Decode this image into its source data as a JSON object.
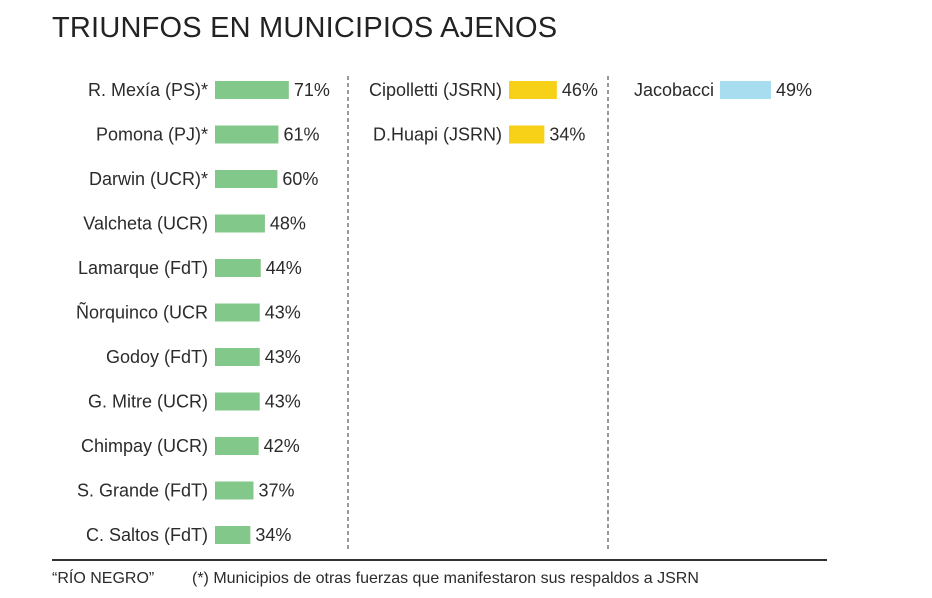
{
  "chart_data": {
    "type": "bar",
    "orientation": "horizontal",
    "title": "TRIUNFOS EN MUNICIPIOS AJENOS",
    "groups": [
      {
        "color": "#82c88a",
        "items": [
          {
            "label": "R. Mexía (PS)*",
            "value": 71,
            "value_label": "71%"
          },
          {
            "label": "Pomona (PJ)*",
            "value": 61,
            "value_label": "61%"
          },
          {
            "label": "Darwin (UCR)*",
            "value": 60,
            "value_label": "60%"
          },
          {
            "label": "Valcheta (UCR)",
            "value": 48,
            "value_label": "48%"
          },
          {
            "label": "Lamarque (FdT)",
            "value": 44,
            "value_label": "44%"
          },
          {
            "label": "Ñorquinco (UCR",
            "value": 43,
            "value_label": "43%"
          },
          {
            "label": "Godoy (FdT)",
            "value": 43,
            "value_label": "43%"
          },
          {
            "label": "G. Mitre (UCR)",
            "value": 43,
            "value_label": "43%"
          },
          {
            "label": "Chimpay (UCR)",
            "value": 42,
            "value_label": "42%"
          },
          {
            "label": "S. Grande (FdT)",
            "value": 37,
            "value_label": "37%"
          },
          {
            "label": "C. Saltos (FdT)",
            "value": 34,
            "value_label": "34%"
          }
        ]
      },
      {
        "color": "#f7d117",
        "items": [
          {
            "label": "Cipolletti (JSRN)",
            "value": 46,
            "value_label": "46%"
          },
          {
            "label": "D.Huapi (JSRN)",
            "value": 34,
            "value_label": "34%"
          }
        ]
      },
      {
        "color": "#a8dcef",
        "items": [
          {
            "label": "Jacobacci",
            "value": 49,
            "value_label": "49%"
          }
        ]
      }
    ],
    "source": "“RÍO NEGRO”",
    "footnote": "(*) Municipios de otras fuerzas que manifestaron sus respaldos a JSRN"
  }
}
